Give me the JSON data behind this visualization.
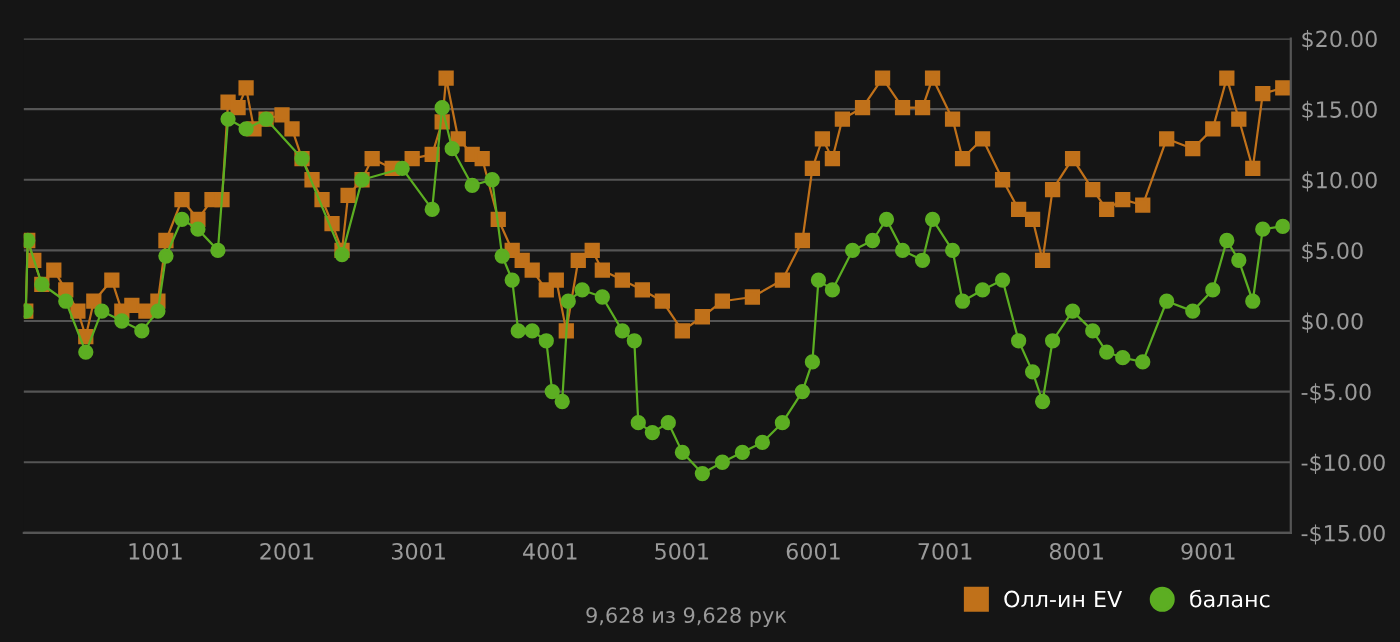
{
  "chart_data": {
    "type": "line",
    "annotations": [
      "9,628 из 9,628 рук"
    ],
    "xlim": [
      1,
      9628
    ],
    "xticks": [
      1001,
      2001,
      3001,
      4001,
      5001,
      6001,
      7001,
      8001,
      9001
    ],
    "ylim": [
      -15,
      20
    ],
    "yticks": [
      {
        "value": -15,
        "label": "-$15.00"
      },
      {
        "value": -10,
        "label": "-$10.00"
      },
      {
        "value": -5,
        "label": "-$5.00"
      },
      {
        "value": 0,
        "label": "$0.00"
      },
      {
        "value": 5,
        "label": "$5.00"
      },
      {
        "value": 10,
        "label": "$10.00"
      },
      {
        "value": 15,
        "label": "$15.00"
      },
      {
        "value": 20,
        "label": "$20.00"
      }
    ],
    "grid": "y",
    "legend": "bottom right",
    "series": [
      {
        "name": "Олл-ин EV",
        "color": "#c0711a",
        "marker": "square",
        "x": [
          16,
          31,
          77,
          138,
          229,
          320,
          412,
          472,
          533,
          670,
          746,
          822,
          929,
          1020,
          1081,
          1203,
          1324,
          1431,
          1507,
          1553,
          1629,
          1690,
          1750,
          1842,
          1963,
          2039,
          2115,
          2191,
          2267,
          2343,
          2419,
          2465,
          2571,
          2648,
          2800,
          2952,
          3104,
          3180,
          3210,
          3302,
          3408,
          3484,
          3606,
          3712,
          3788,
          3864,
          3971,
          4047,
          4123,
          4214,
          4320,
          4397,
          4549,
          4701,
          4853,
          5005,
          5157,
          5309,
          5537,
          5765,
          5917,
          5993,
          6069,
          6145,
          6221,
          6374,
          6526,
          6678,
          6830,
          6906,
          7058,
          7134,
          7286,
          7438,
          7560,
          7666,
          7742,
          7818,
          7970,
          8123,
          8229,
          8351,
          8503,
          8685,
          8883,
          9035,
          9142,
          9233,
          9339,
          9415,
          9567
        ],
        "values": [
          0.7,
          5.7,
          4.3,
          2.6,
          3.6,
          2.2,
          0.7,
          -1.1,
          1.4,
          2.9,
          0.7,
          1.1,
          0.7,
          1.4,
          5.7,
          8.6,
          7.2,
          8.6,
          8.6,
          15.5,
          15.1,
          16.5,
          13.6,
          14.3,
          14.6,
          13.6,
          11.5,
          10.0,
          8.6,
          6.9,
          5.0,
          8.9,
          10.0,
          11.5,
          10.8,
          11.5,
          11.8,
          14.1,
          17.2,
          12.9,
          11.8,
          11.5,
          7.2,
          5.0,
          4.3,
          3.6,
          2.2,
          2.9,
          -0.7,
          4.3,
          5.0,
          3.6,
          2.9,
          2.2,
          1.4,
          -0.7,
          0.3,
          1.4,
          1.7,
          2.9,
          5.7,
          10.8,
          12.9,
          11.5,
          14.3,
          15.1,
          17.2,
          15.1,
          15.1,
          17.2,
          14.3,
          11.5,
          12.9,
          10.0,
          7.9,
          7.2,
          4.3,
          9.3,
          11.5,
          9.3,
          7.9,
          8.6,
          8.2,
          12.9,
          12.2,
          13.6,
          17.2,
          14.3,
          10.8,
          16.1,
          16.5
        ]
      },
      {
        "name": "баланс",
        "color": "#5cae22",
        "marker": "circle",
        "x": [
          16,
          31,
          138,
          320,
          472,
          594,
          746,
          898,
          1020,
          1081,
          1203,
          1324,
          1476,
          1553,
          1690,
          1842,
          2115,
          2419,
          2571,
          2876,
          3104,
          3180,
          3256,
          3408,
          3560,
          3636,
          3712,
          3758,
          3864,
          3971,
          4016,
          4092,
          4138,
          4244,
          4397,
          4549,
          4640,
          4670,
          4777,
          4898,
          5005,
          5157,
          5309,
          5461,
          5613,
          5765,
          5917,
          5993,
          6039,
          6145,
          6298,
          6450,
          6556,
          6678,
          6830,
          6906,
          7058,
          7134,
          7286,
          7438,
          7560,
          7666,
          7742,
          7818,
          7970,
          8123,
          8229,
          8351,
          8503,
          8685,
          8883,
          9035,
          9142,
          9233,
          9339,
          9415,
          9567
        ],
        "values": [
          0.7,
          5.7,
          2.6,
          1.4,
          -2.2,
          0.7,
          0,
          -0.7,
          0.7,
          4.6,
          7.2,
          6.5,
          5.0,
          14.3,
          13.6,
          14.3,
          11.5,
          4.7,
          10.0,
          10.8,
          7.9,
          15.1,
          12.2,
          9.6,
          10.0,
          4.6,
          2.9,
          -0.7,
          -0.7,
          -1.4,
          -5.0,
          -5.7,
          1.4,
          2.2,
          1.7,
          -0.7,
          -1.4,
          -7.2,
          -7.9,
          -7.2,
          -9.3,
          -10.8,
          -10.0,
          -9.3,
          -8.6,
          -7.2,
          -5.0,
          -2.9,
          2.9,
          2.2,
          5.0,
          5.7,
          7.2,
          5.0,
          4.3,
          7.2,
          5.0,
          1.4,
          2.2,
          2.9,
          -1.4,
          -3.6,
          -5.7,
          -1.4,
          0.7,
          -0.7,
          -2.2,
          -2.6,
          -2.9,
          1.4,
          0.7,
          2.2,
          5.7,
          4.3,
          1.4,
          6.5,
          6.7
        ]
      }
    ]
  }
}
